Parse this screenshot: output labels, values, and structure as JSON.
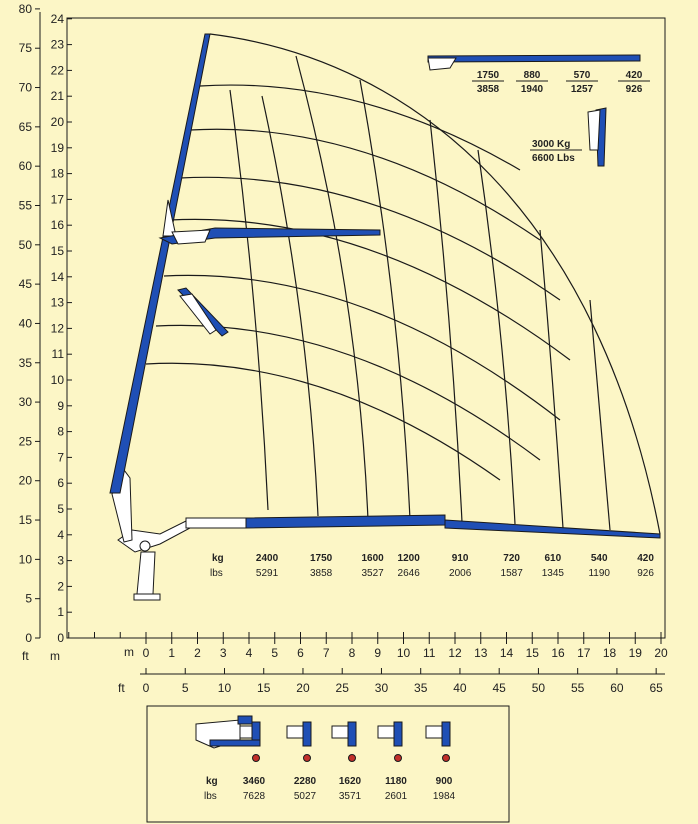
{
  "colors": {
    "background": "#fcf6c6",
    "boom": "#1f4fb5",
    "line": "#1a1a1a",
    "hook": "#c2302a"
  },
  "axes": {
    "ft_label": "ft",
    "m_label": "m",
    "y_ft_ticks": [
      "0",
      "5",
      "10",
      "15",
      "20",
      "25",
      "30",
      "35",
      "40",
      "45",
      "50",
      "55",
      "60",
      "65",
      "70",
      "75",
      "80"
    ],
    "y_m_ticks": [
      "0",
      "1",
      "2",
      "3",
      "4",
      "5",
      "6",
      "7",
      "8",
      "9",
      "10",
      "11",
      "12",
      "13",
      "14",
      "15",
      "16",
      "17",
      "18",
      "19",
      "20",
      "21",
      "22",
      "23",
      "24"
    ],
    "x_m_ticks": [
      "0",
      "1",
      "2",
      "3",
      "4",
      "5",
      "6",
      "7",
      "8",
      "9",
      "10",
      "11",
      "12",
      "13",
      "14",
      "15",
      "16",
      "17",
      "18",
      "19",
      "20"
    ],
    "x_ft_ticks": [
      "0",
      "5",
      "10",
      "15",
      "20",
      "25",
      "30",
      "35",
      "40",
      "45",
      "50",
      "55",
      "60",
      "65"
    ]
  },
  "load_table": {
    "kg_label": "kg",
    "lbs_label": "lbs",
    "points": [
      {
        "reach_m": 4.7,
        "kg": "2400",
        "lbs": "5291"
      },
      {
        "reach_m": 6.8,
        "kg": "1750",
        "lbs": "3858"
      },
      {
        "reach_m": 8.8,
        "kg": "1600",
        "lbs": "3527"
      },
      {
        "reach_m": 10.2,
        "kg": "1200",
        "lbs": "2646"
      },
      {
        "reach_m": 12.2,
        "kg": "910",
        "lbs": "2006"
      },
      {
        "reach_m": 14.2,
        "kg": "720",
        "lbs": "1587"
      },
      {
        "reach_m": 15.8,
        "kg": "610",
        "lbs": "1345"
      },
      {
        "reach_m": 17.6,
        "kg": "540",
        "lbs": "1190"
      },
      {
        "reach_m": 19.4,
        "kg": "420",
        "lbs": "926"
      }
    ]
  },
  "top_table": {
    "items": [
      {
        "kg": "1750",
        "lbs": "3858"
      },
      {
        "kg": "880",
        "lbs": "1940"
      },
      {
        "kg": "570",
        "lbs": "1257"
      },
      {
        "kg": "420",
        "lbs": "926"
      }
    ]
  },
  "max_load": {
    "kg": "3000 Kg",
    "lbs": "6600 Lbs"
  },
  "bottom_box": {
    "kg_label": "kg",
    "lbs_label": "lbs",
    "items": [
      {
        "kg": "3460",
        "lbs": "7628"
      },
      {
        "kg": "2280",
        "lbs": "5027"
      },
      {
        "kg": "1620",
        "lbs": "3571"
      },
      {
        "kg": "1180",
        "lbs": "2601"
      },
      {
        "kg": "900",
        "lbs": "1984"
      }
    ]
  }
}
